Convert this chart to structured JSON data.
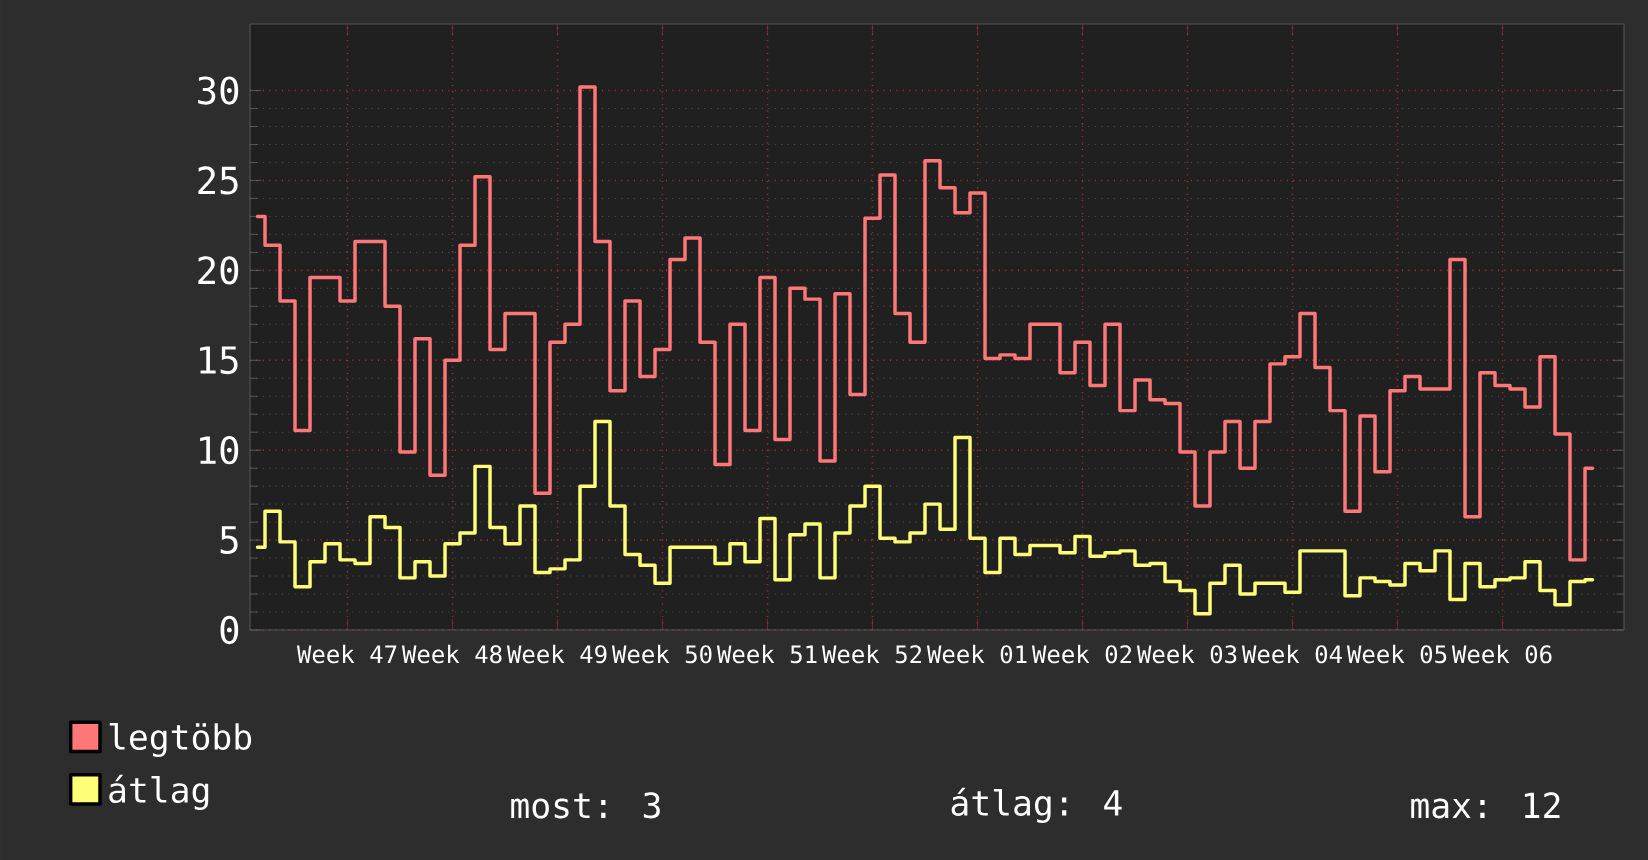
{
  "chart_data": {
    "type": "step",
    "grid": true,
    "legend": "bottom",
    "ylim": [
      0,
      33.7
    ],
    "yticks": [
      0,
      5,
      10,
      15,
      20,
      25,
      30
    ],
    "categories": [
      null,
      null,
      null,
      null,
      null,
      null,
      "Week 47",
      null,
      null,
      null,
      null,
      null,
      null,
      "Week 48",
      null,
      null,
      null,
      null,
      null,
      null,
      "Week 49",
      null,
      null,
      null,
      null,
      null,
      null,
      "Week 50",
      null,
      null,
      null,
      null,
      null,
      null,
      "Week 51",
      null,
      null,
      null,
      null,
      null,
      null,
      "Week 52",
      null,
      null,
      null,
      null,
      null,
      null,
      "Week 01",
      null,
      null,
      null,
      null,
      null,
      null,
      "Week 02",
      null,
      null,
      null,
      null,
      null,
      null,
      "Week 03",
      null,
      null,
      null,
      null,
      null,
      null,
      "Week 04",
      null,
      null,
      null,
      null,
      null,
      null,
      "Week 05",
      null,
      null,
      null,
      null,
      null,
      null,
      "Week 06",
      null,
      null,
      null,
      null,
      null,
      null
    ],
    "series": [
      {
        "name": "legtöbb",
        "color": "#ff7777",
        "values": [
          23.0,
          21.4,
          18.3,
          11.1,
          19.6,
          19.6,
          18.3,
          21.6,
          21.6,
          18.0,
          9.9,
          16.2,
          8.6,
          15.0,
          21.4,
          25.2,
          15.6,
          17.6,
          17.6,
          7.6,
          16.0,
          17.0,
          30.2,
          21.6,
          13.3,
          18.3,
          14.1,
          15.6,
          20.6,
          21.8,
          16.0,
          9.2,
          17.0,
          11.1,
          19.6,
          10.6,
          19.0,
          18.4,
          9.4,
          18.7,
          13.1,
          22.9,
          25.3,
          17.6,
          16.0,
          26.1,
          24.6,
          23.2,
          24.3,
          15.1,
          15.3,
          15.1,
          17.0,
          17.0,
          14.3,
          16.0,
          13.6,
          17.0,
          12.2,
          13.9,
          12.8,
          12.6,
          9.9,
          6.9,
          9.9,
          11.6,
          9.0,
          11.6,
          14.8,
          15.2,
          17.6,
          14.6,
          12.2,
          6.6,
          11.9,
          8.8,
          13.3,
          14.1,
          13.4,
          13.4,
          20.6,
          6.3,
          14.3,
          13.6,
          13.4,
          12.4,
          15.2,
          10.9,
          3.9,
          9.0
        ]
      },
      {
        "name": "átlag",
        "color": "#ffff77",
        "values": [
          4.6,
          6.6,
          4.9,
          2.4,
          3.8,
          4.8,
          3.9,
          3.7,
          6.3,
          5.7,
          2.9,
          3.8,
          3.0,
          4.8,
          5.4,
          9.1,
          5.7,
          4.8,
          6.9,
          3.2,
          3.4,
          3.9,
          8.0,
          11.6,
          6.9,
          4.2,
          3.6,
          2.6,
          4.6,
          4.6,
          4.6,
          3.7,
          4.8,
          3.8,
          6.2,
          2.8,
          5.3,
          5.9,
          2.9,
          5.4,
          6.9,
          8.0,
          5.1,
          4.9,
          5.4,
          7.0,
          5.6,
          10.7,
          5.1,
          3.2,
          5.1,
          4.2,
          4.7,
          4.7,
          4.3,
          5.2,
          4.1,
          4.3,
          4.4,
          3.6,
          3.7,
          2.7,
          2.2,
          0.9,
          2.6,
          3.6,
          2.0,
          2.6,
          2.6,
          2.1,
          4.4,
          4.4,
          4.4,
          1.9,
          2.9,
          2.7,
          2.5,
          3.7,
          3.3,
          4.4,
          1.7,
          3.7,
          2.4,
          2.8,
          2.9,
          3.8,
          2.2,
          1.4,
          2.7,
          2.8
        ]
      }
    ],
    "annotations": [
      "most: 3",
      "átlag: 4",
      "max: 12"
    ]
  }
}
